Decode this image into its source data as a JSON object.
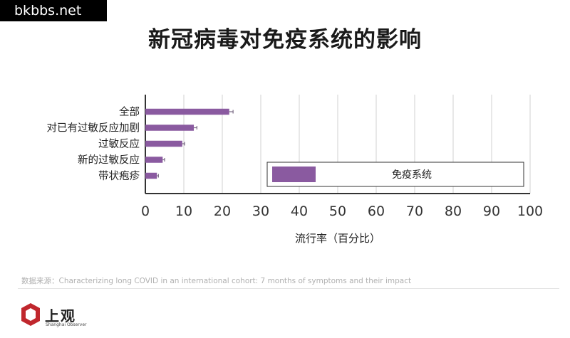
{
  "watermark": "bkbbs.net",
  "source": "数据来源：Characterizing long COVID in an international cohort: 7 months of symptoms and their impact",
  "logo": {
    "name": "上观",
    "subtitle": "Shanghai Observer",
    "color": "#c0272d"
  },
  "colors": {
    "bar": "#8a5aa0",
    "axis": "#333333",
    "grid": "#d0d0d0",
    "text": "#222222"
  },
  "chart_data": {
    "type": "bar",
    "orientation": "horizontal",
    "title": "新冠病毒对免疫系统的影响",
    "xlabel": "流行率（百分比）",
    "ylabel": "",
    "categories": [
      "全部",
      "对已有过敏反应加剧",
      "过敏反应",
      "新的过敏反应",
      "带状疱疹"
    ],
    "series": [
      {
        "name": "免疫系统",
        "values": [
          21.8,
          12.6,
          9.6,
          4.5,
          3.0
        ],
        "errors": [
          1.0,
          0.8,
          0.6,
          0.5,
          0.4
        ]
      }
    ],
    "xlim": [
      0,
      100
    ],
    "xticks": [
      0,
      10,
      20,
      30,
      40,
      50,
      60,
      70,
      80,
      90,
      100
    ],
    "grid": "vertical",
    "legend_position": "bottom-right"
  }
}
